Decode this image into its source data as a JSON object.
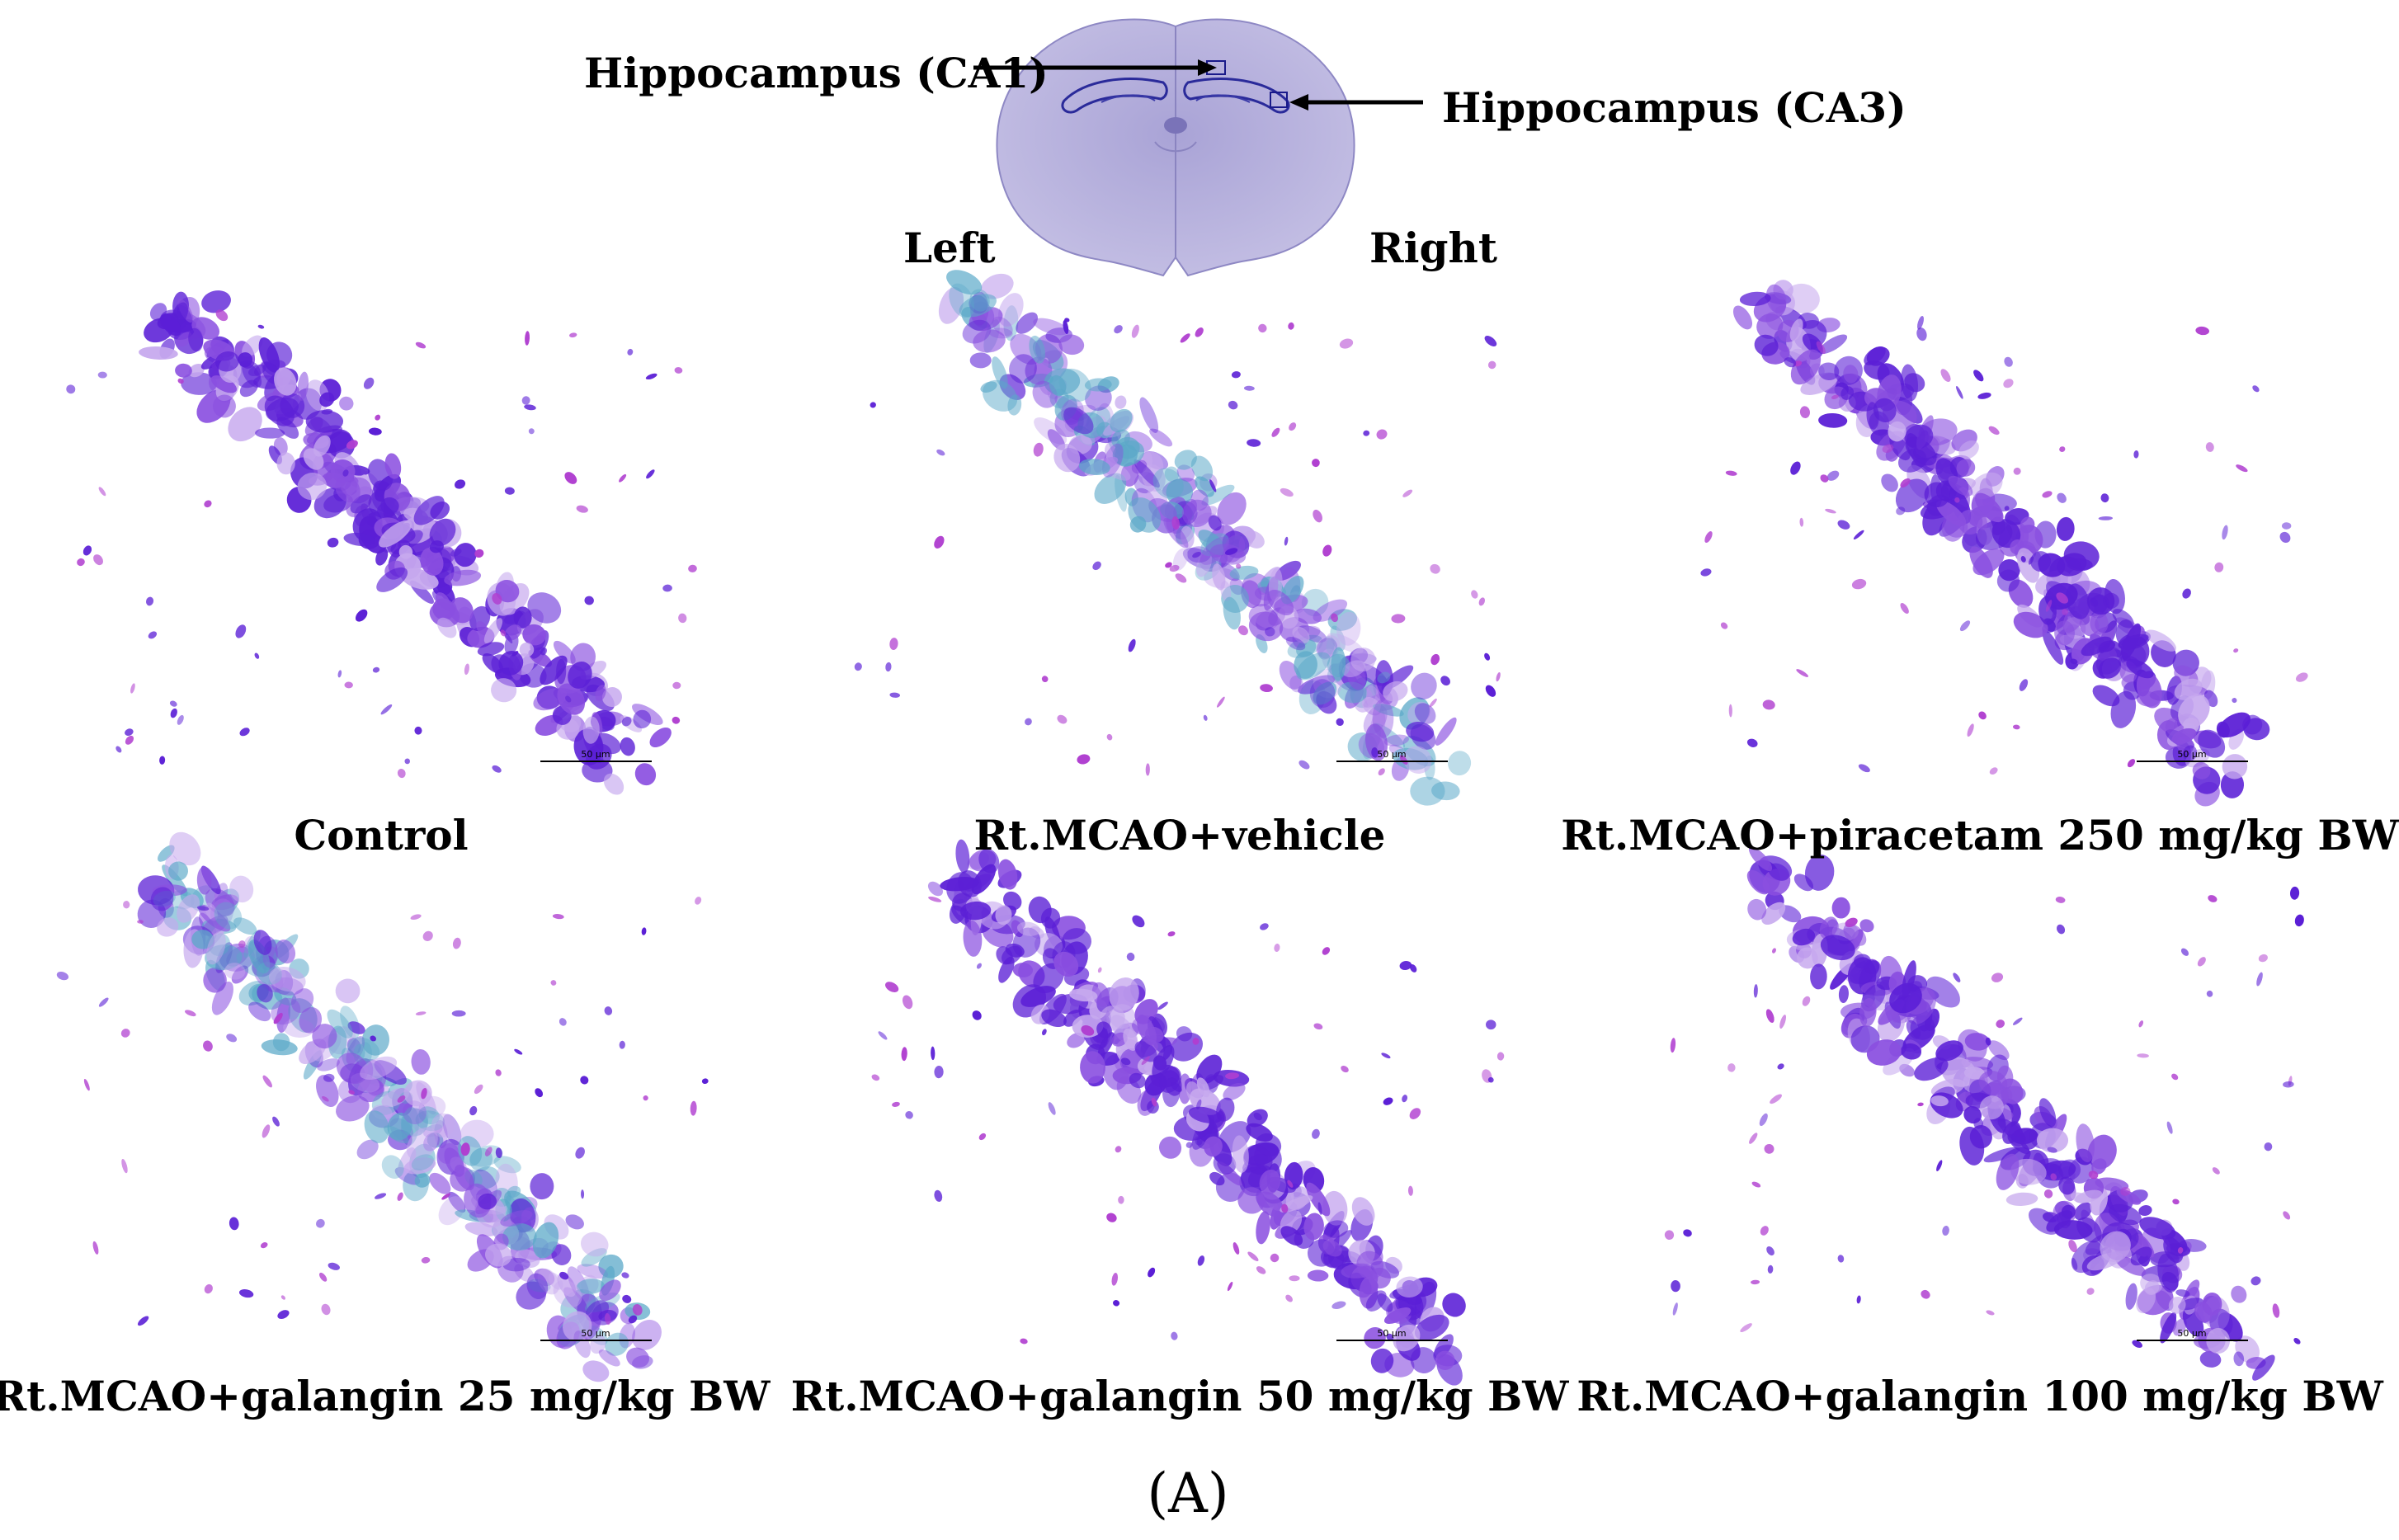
{
  "brain_diagram": {
    "ca1_label": "Hippocampus (CA1)",
    "ca3_label": "Hippocampus (CA3)",
    "left_label": "Left",
    "right_label": "Right"
  },
  "panels": [
    {
      "caption": "Control",
      "scale_bar": "50 μm",
      "stain": "normal"
    },
    {
      "caption": "Rt.MCAO+vehicle",
      "scale_bar": "50 μm",
      "stain": "damaged"
    },
    {
      "caption": "Rt.MCAO+piracetam 250 mg/kg BW",
      "scale_bar": "50 μm",
      "stain": "normal"
    },
    {
      "caption": "Rt.MCAO+galangin 25 mg/kg BW",
      "scale_bar": "50 μm",
      "stain": "damaged"
    },
    {
      "caption": "Rt.MCAO+galangin 50 mg/kg BW",
      "scale_bar": "50 μm",
      "stain": "normal"
    },
    {
      "caption": "Rt.MCAO+galangin 100 mg/kg BW",
      "scale_bar": "50 μm",
      "stain": "normal"
    }
  ],
  "figure_label": "(A)",
  "colors": {
    "nissl_dark": "#5b1fd6",
    "nissl_mid": "#8a4fe0",
    "nissl_light": "#c6a8ee",
    "damaged_teal": "#5aa8c8",
    "brain_fill": "#b9b4dc"
  }
}
